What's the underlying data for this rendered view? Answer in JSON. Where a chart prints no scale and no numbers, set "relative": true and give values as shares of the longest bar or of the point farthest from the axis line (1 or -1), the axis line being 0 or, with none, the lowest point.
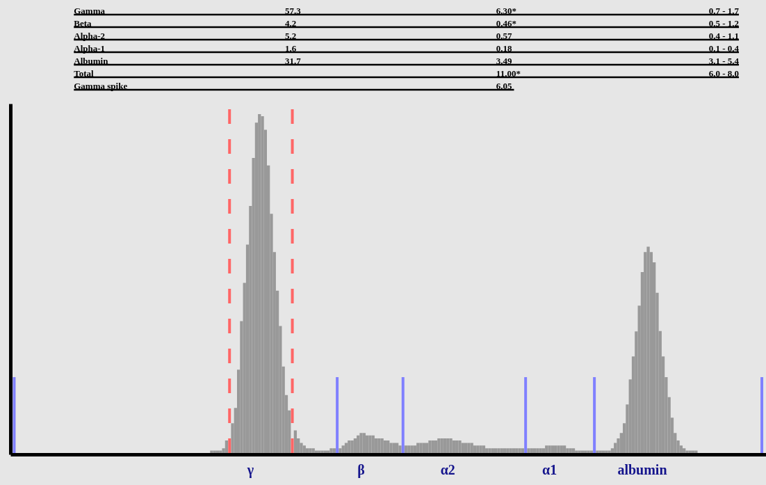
{
  "chart_data": {
    "type": "bar",
    "relative": true,
    "stacked": true,
    "categories": [
      null,
      null,
      null,
      null,
      null,
      null,
      null,
      null,
      null,
      null,
      null,
      null,
      null,
      null,
      null,
      null,
      null,
      null,
      null,
      null,
      null,
      null,
      null,
      null,
      null,
      null,
      null,
      null,
      null,
      null,
      null,
      null,
      null,
      null,
      null,
      null,
      null,
      null,
      null,
      null,
      null,
      null,
      null,
      null,
      null,
      null,
      null,
      null,
      null,
      null,
      null,
      null,
      null,
      null,
      null,
      null,
      null,
      null,
      null,
      null,
      null,
      null,
      null,
      null,
      null,
      null,
      null,
      null,
      null,
      null,
      null,
      null,
      null,
      null,
      null,
      null,
      null,
      null,
      null,
      "γ",
      null,
      null,
      null,
      null,
      null,
      null,
      null,
      null,
      null,
      null,
      null,
      null,
      null,
      null,
      null,
      null,
      null,
      null,
      null,
      null,
      null,
      null,
      null,
      null,
      null,
      null,
      null,
      null,
      null,
      null,
      null,
      null,
      null,
      null,
      null,
      null,
      "β",
      null,
      null,
      null,
      null,
      null,
      null,
      null,
      null,
      null,
      null,
      null,
      null,
      null,
      null,
      null,
      null,
      null,
      null,
      null,
      null,
      null,
      null,
      null,
      null,
      null,
      null,
      null,
      null,
      "α2",
      null,
      null,
      null,
      null,
      null,
      null,
      null,
      null,
      null,
      null,
      null,
      null,
      null,
      null,
      null,
      null,
      null,
      null,
      null,
      null,
      null,
      null,
      null,
      null,
      null,
      null,
      null,
      null,
      null,
      null,
      null,
      null,
      null,
      "α1",
      null,
      null,
      null,
      null,
      null,
      null,
      null,
      null,
      null,
      null,
      null,
      null,
      null,
      null,
      null,
      null,
      null,
      null,
      null,
      null,
      null,
      null,
      null,
      null,
      null,
      null,
      null,
      null,
      null,
      null,
      "albumin",
      null,
      null,
      null,
      null,
      null,
      null,
      null,
      null,
      null,
      null,
      null,
      null,
      null,
      null,
      null,
      null,
      null,
      null,
      null,
      null,
      null,
      null,
      null,
      null,
      null,
      null,
      null,
      null,
      null,
      null,
      null,
      null,
      null,
      null,
      null,
      null,
      null,
      null,
      null,
      null,
      null
    ],
    "series": [
      {
        "color": "#999999",
        "values": [
          null,
          null,
          null,
          null,
          null,
          null,
          null,
          null,
          null,
          null,
          null,
          null,
          null,
          null,
          null,
          null,
          null,
          null,
          null,
          null,
          null,
          null,
          null,
          null,
          null,
          null,
          null,
          null,
          null,
          null,
          null,
          null,
          null,
          null,
          null,
          null,
          null,
          null,
          null,
          null,
          null,
          null,
          null,
          null,
          null,
          null,
          null,
          null,
          null,
          null,
          null,
          null,
          null,
          null,
          null,
          null,
          null,
          null,
          null,
          null,
          null,
          null,
          null,
          null,
          null,
          null,
          0.007,
          0.007,
          0.007,
          0.007,
          0.014,
          0.037,
          null,
          0.088,
          0.133,
          0.246,
          0.389,
          0.502,
          0.615,
          0.729,
          0.871,
          0.975,
          1,
          0.994,
          0.954,
          0.849,
          0.706,
          0.593,
          0.479,
          0.375,
          0.255,
          0.171,
          0.126,
          null,
          0.067,
          0.043,
          0.03,
          0.022,
          0.014,
          0.014,
          0.014,
          0.007,
          0.007,
          0.007,
          0.007,
          0.007,
          0.014,
          0.014,
          null,
          0.014,
          0.022,
          0.03,
          0.037,
          0.037,
          0.043,
          0.052,
          0.059,
          0.059,
          0.052,
          0.052,
          0.052,
          0.043,
          0.043,
          0.043,
          0.037,
          0.037,
          0.03,
          0.03,
          0.03,
          0.022,
          null,
          0.022,
          0.022,
          0.022,
          0.022,
          0.03,
          0.03,
          0.03,
          0.03,
          0.037,
          0.037,
          0.037,
          0.043,
          0.043,
          0.043,
          0.043,
          0.043,
          0.037,
          0.037,
          0.037,
          0.03,
          0.03,
          0.03,
          0.03,
          0.022,
          0.022,
          0.022,
          0.022,
          0.014,
          0.014,
          0.014,
          0.014,
          0.014,
          0.014,
          0.014,
          0.014,
          0.014,
          0.014,
          0.014,
          0.014,
          0.014,
          null,
          0.014,
          0.014,
          0.014,
          0.014,
          0.014,
          0.014,
          0.022,
          0.022,
          0.022,
          0.022,
          0.022,
          0.022,
          0.022,
          0.014,
          0.014,
          0.014,
          0.007,
          0.007,
          0.007,
          0.007,
          0.007,
          0.007,
          null,
          0.007,
          0.007,
          0.007,
          0.007,
          0.007,
          0.014,
          0.03,
          0.043,
          0.059,
          0.088,
          0.143,
          0.217,
          0.285,
          0.359,
          0.435,
          0.534,
          0.593,
          0.609,
          0.593,
          0.563,
          0.473,
          0.36,
          0.285,
          0.224,
          0.165,
          0.104,
          0.059,
          0.037,
          0.022,
          0.014,
          0.007,
          0.007,
          0.007,
          0.007,
          null,
          null,
          null,
          null,
          null,
          null,
          null,
          null,
          null,
          null,
          null,
          null,
          null,
          null,
          null,
          null,
          null,
          null,
          null,
          null,
          null,
          null,
          null
        ]
      },
      {
        "color": "#8080ff",
        "values": [
          0.224,
          null,
          null,
          null,
          null,
          null,
          null,
          null,
          null,
          null,
          null,
          null,
          null,
          null,
          null,
          null,
          null,
          null,
          null,
          null,
          null,
          null,
          null,
          null,
          null,
          null,
          null,
          null,
          null,
          null,
          null,
          null,
          null,
          null,
          null,
          null,
          null,
          null,
          null,
          null,
          null,
          null,
          null,
          null,
          null,
          null,
          null,
          null,
          null,
          null,
          null,
          null,
          null,
          null,
          null,
          null,
          null,
          null,
          null,
          null,
          null,
          null,
          null,
          null,
          null,
          null,
          null,
          null,
          null,
          null,
          null,
          null,
          null,
          null,
          null,
          null,
          null,
          null,
          null,
          null,
          null,
          null,
          null,
          null,
          null,
          null,
          null,
          null,
          null,
          null,
          null,
          null,
          null,
          null,
          null,
          null,
          null,
          null,
          null,
          null,
          null,
          null,
          null,
          null,
          null,
          null,
          null,
          null,
          0.224,
          null,
          null,
          null,
          null,
          null,
          null,
          null,
          null,
          null,
          null,
          null,
          null,
          null,
          null,
          null,
          null,
          null,
          null,
          null,
          null,
          null,
          0.224,
          null,
          null,
          null,
          null,
          null,
          null,
          null,
          null,
          null,
          null,
          null,
          null,
          null,
          null,
          null,
          null,
          null,
          null,
          null,
          null,
          null,
          null,
          null,
          null,
          null,
          null,
          null,
          null,
          null,
          null,
          null,
          null,
          null,
          null,
          null,
          null,
          null,
          null,
          null,
          null,
          0.224,
          null,
          null,
          null,
          null,
          null,
          null,
          null,
          null,
          null,
          null,
          null,
          null,
          null,
          null,
          null,
          null,
          null,
          null,
          null,
          null,
          null,
          null,
          0.224,
          null,
          null,
          null,
          null,
          null,
          null,
          null,
          null,
          null,
          null,
          null,
          null,
          null,
          null,
          null,
          null,
          null,
          null,
          null,
          null,
          null,
          null,
          null,
          null,
          null,
          null,
          null,
          null,
          null,
          null,
          null,
          null,
          null,
          null,
          null,
          null,
          null,
          null,
          null,
          null,
          null,
          null,
          null,
          null,
          null,
          null,
          null,
          null,
          null,
          null,
          null,
          null,
          null,
          null,
          null,
          0.224,
          null
        ]
      }
    ],
    "tick_labels": "x",
    "annotations": [
      "Gamma\t57.3\t6.30*\t0.7 - 1.7",
      "Beta\t4.2\t0.46*\t0.5 - 1.2",
      "Alpha-2\t5.2\t0.57\t0.4 - 1.1",
      "Alpha-1\t1.6\t0.18\t0.1 - 0.4",
      "Albumin\t31.7\t3.49\t3.1 - 5.4",
      "Total\t\t11.00*\t6.0 - 8.0",
      "Gamma spike\t\t6.05"
    ]
  }
}
